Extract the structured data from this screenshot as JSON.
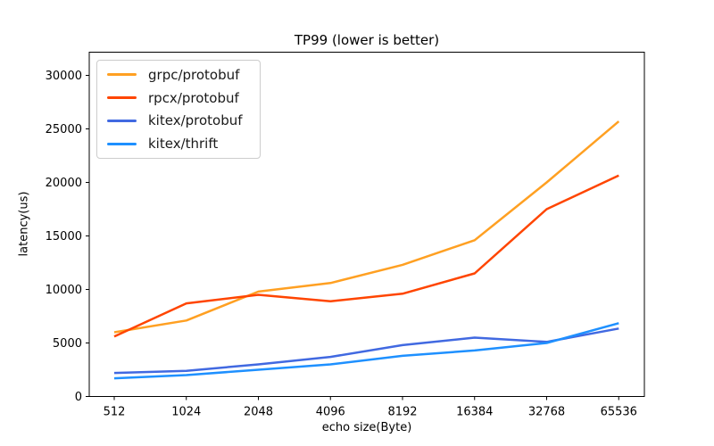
{
  "figure": {
    "background": "#ffffff",
    "spine_color": "#000000",
    "text_color": "#000000"
  },
  "chart_data": {
    "type": "line",
    "title": "TP99 (lower is better)",
    "xlabel": "echo size(Byte)",
    "ylabel": "latency(us)",
    "x_scale": "log2-categorical",
    "categories": [
      "512",
      "1024",
      "2048",
      "4096",
      "8192",
      "16384",
      "32768",
      "65536"
    ],
    "yticks": [
      0,
      5000,
      10000,
      15000,
      20000,
      25000,
      30000
    ],
    "ylim": [
      0,
      32000
    ],
    "grid": false,
    "legend_position": "upper left",
    "series": [
      {
        "name": "grpc/protobuf",
        "color": "#ffa022",
        "values": [
          6000,
          7100,
          9800,
          10600,
          12300,
          14600,
          20000,
          25700
        ]
      },
      {
        "name": "rpcx/protobuf",
        "color": "#ff4500",
        "values": [
          5600,
          8700,
          9500,
          8900,
          9600,
          11500,
          17500,
          20650
        ]
      },
      {
        "name": "kitex/protobuf",
        "color": "#4169e1",
        "values": [
          2200,
          2400,
          3000,
          3700,
          4800,
          5500,
          5100,
          6350
        ]
      },
      {
        "name": "kitex/thrift",
        "color": "#1e90ff",
        "values": [
          1700,
          2000,
          2500,
          3000,
          3800,
          4300,
          5000,
          6850
        ]
      }
    ]
  }
}
